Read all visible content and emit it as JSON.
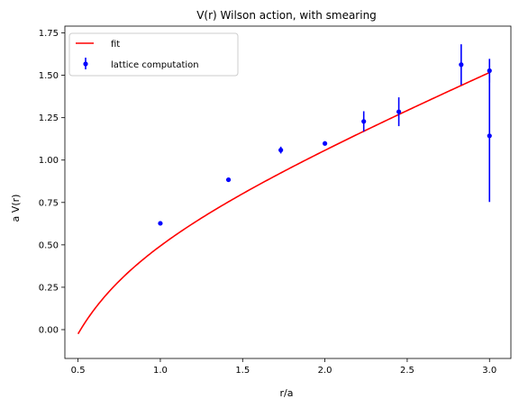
{
  "chart_data": {
    "type": "scatter",
    "title": "V(r) Wilson action, with smearing",
    "xlabel": "r/a",
    "ylabel": "a V(r)",
    "xlim": [
      0.42,
      3.13
    ],
    "ylim": [
      -0.17,
      1.79
    ],
    "xticks": [
      0.5,
      1.0,
      1.5,
      2.0,
      2.5,
      3.0
    ],
    "xtick_labels": [
      "0.5",
      "1.0",
      "1.5",
      "2.0",
      "2.5",
      "3.0"
    ],
    "yticks": [
      0.0,
      0.25,
      0.5,
      0.75,
      1.0,
      1.25,
      1.5,
      1.75
    ],
    "ytick_labels": [
      "0.00",
      "0.25",
      "0.50",
      "0.75",
      "1.00",
      "1.25",
      "1.50",
      "1.75"
    ],
    "grid": false,
    "legend_position": "top-left",
    "legend": [
      {
        "label": "fit",
        "color": "#ff0000",
        "kind": "line"
      },
      {
        "label": "lattice computation",
        "color": "#0000ff",
        "kind": "errorbar"
      }
    ],
    "series": [
      {
        "name": "lattice computation",
        "kind": "errorbar",
        "color": "#0000ff",
        "points": [
          {
            "x": 1.0,
            "y": 0.627,
            "err": 0.01
          },
          {
            "x": 1.414,
            "y": 0.884,
            "err": 0.01
          },
          {
            "x": 1.732,
            "y": 1.059,
            "err": 0.02
          },
          {
            "x": 2.0,
            "y": 1.098,
            "err": 0.01
          },
          {
            "x": 2.236,
            "y": 1.228,
            "err": 0.06
          },
          {
            "x": 2.449,
            "y": 1.285,
            "err": 0.085
          },
          {
            "x": 2.828,
            "y": 1.563,
            "err": 0.12
          },
          {
            "x": 3.0,
            "y": 1.527,
            "err": 0.07
          },
          {
            "x": 3.0,
            "y": 1.143,
            "err": 0.39
          }
        ]
      },
      {
        "name": "fit",
        "kind": "line",
        "color": "#ff0000",
        "function": "a V(r) = 0.4022 + 0.4064 * r - 0.3152 / r",
        "x_range": [
          0.5,
          3.0
        ],
        "params": {
          "V0": 0.4022,
          "sigma": 0.4064,
          "alpha": 0.3152
        }
      }
    ]
  }
}
